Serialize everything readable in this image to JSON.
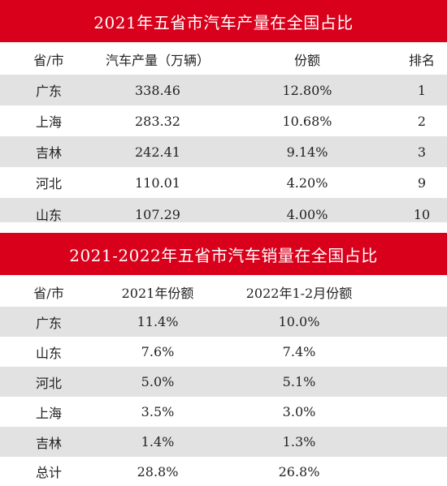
{
  "table1": {
    "title": "2021年五省市汽车产量在全国占比",
    "headers": [
      "省/市",
      "汽车产量（万辆）",
      "份额",
      "排名"
    ],
    "rows": [
      [
        "广东",
        "338.46",
        "12.80%",
        "1"
      ],
      [
        "上海",
        "283.32",
        "10.68%",
        "2"
      ],
      [
        "吉林",
        "242.41",
        "9.14%",
        "3"
      ],
      [
        "河北",
        "110.01",
        "4.20%",
        "9"
      ],
      [
        "山东",
        "107.29",
        "4.00%",
        "10"
      ]
    ]
  },
  "table2": {
    "title": "2021-2022年五省市汽车销量在全国占比",
    "headers": [
      "省/市",
      "2021年份额",
      "2022年1-2月份额"
    ],
    "rows": [
      [
        "广东",
        "11.4%",
        "10.0%"
      ],
      [
        "山东",
        "7.6%",
        "7.4%"
      ],
      [
        "河北",
        "5.0%",
        "5.1%"
      ],
      [
        "上海",
        "3.5%",
        "3.0%"
      ],
      [
        "吉林",
        "1.4%",
        "1.3%"
      ],
      [
        "总计",
        "28.8%",
        "26.8%"
      ]
    ]
  },
  "colors": {
    "title_bg": "#d9001b",
    "title_text": "#ffffff",
    "row_shade": "#e2e2e2"
  }
}
